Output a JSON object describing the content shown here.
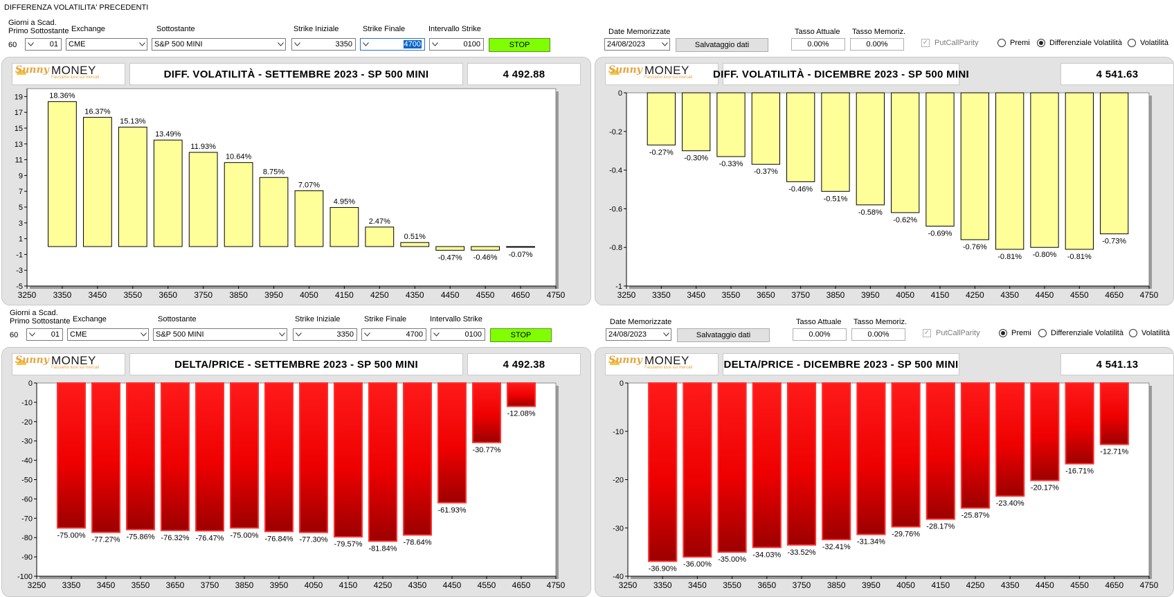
{
  "window_title": "DIFFERENZA VOLATILITA' PRECEDENTI",
  "accent": {
    "stop_button": "#7fff00",
    "vol_bar": "#ffff99",
    "delta_bar_top": "#ff0000",
    "delta_bar_bottom": "#a00000"
  },
  "controls_top": {
    "giorni_label1": "Giorni a Scad.",
    "giorni_label2": "Primo Sottostante",
    "giorni_value": "60",
    "giorni_combo": "01",
    "exchange_label": "Exchange",
    "exchange_value": "CME",
    "sottostante_label": "Sottostante",
    "sottostante_value": "S&P 500 MINI",
    "strike_iniziale_label": "Strike Iniziale",
    "strike_iniziale_value": "3350",
    "strike_finale_label": "Strike Finale",
    "strike_finale_value": "4700",
    "intervallo_label": "Intervallo Strike",
    "intervallo_value": "0100",
    "stop_label": "STOP",
    "date_label": "Date Memorizzate",
    "date_value": "24/08/2023",
    "save_label": "Salvataggio dati",
    "tasso_attuale_label": "Tasso Attuale",
    "tasso_attuale_value": "0.00%",
    "tasso_memoriz_label": "Tasso Memoriz.",
    "tasso_memoriz_value": "0.00%",
    "putcall_label": "PutCallParity",
    "radio_premi": "Premi",
    "radio_diff": "Differenziale Volatilità",
    "radio_vol": "Volatilità",
    "selected": "diff"
  },
  "controls_bottom": {
    "giorni_label1": "Giorni a Scad.",
    "giorni_label2": "Primo Sottostante",
    "giorni_value": "60",
    "giorni_combo": "01",
    "exchange_label": "Exchange",
    "exchange_value": "CME",
    "sottostante_label": "Sottostante",
    "sottostante_value": "S&P 500 MINI",
    "strike_iniziale_label": "Strike Iniziale",
    "strike_iniziale_value": "3350",
    "strike_finale_label": "Strike Finale",
    "strike_finale_value": "4700",
    "intervallo_label": "Intervallo Strike",
    "intervallo_value": "0100",
    "stop_label": "STOP",
    "date_label": "Date Memorizzate",
    "date_value": "24/08/2023",
    "save_label": "Salvataggio dati",
    "tasso_attuale_label": "Tasso Attuale",
    "tasso_attuale_value": "0.00%",
    "tasso_memoriz_label": "Tasso Memoriz.",
    "tasso_memoriz_value": "0.00%",
    "putcall_label": "PutCallParity",
    "radio_premi": "Premi",
    "radio_diff": "Differenziale Volatilità",
    "radio_vol": "Volatilità",
    "selected": "premi"
  },
  "logo": {
    "brand_a": "Sunny",
    "brand_b": "MONEY",
    "tagline": "Facciamo luce sui mercati"
  },
  "panels": [
    {
      "title": "DIFF. VOLATILITÀ - SETTEMBRE 2023 - SP 500 MINI",
      "price": "4 492.88"
    },
    {
      "title": "DIFF. VOLATILITÀ - DICEMBRE 2023 - SP 500 MINI",
      "price": "4 541.63"
    },
    {
      "title": "DELTA/PRICE - SETTEMBRE 2023 - SP 500 MINI",
      "price": "4 492.38"
    },
    {
      "title": "DELTA/PRICE - DICEMBRE 2023 - SP 500 MINI",
      "price": "4 541.13"
    }
  ],
  "chart_data": [
    {
      "type": "bar",
      "x": [
        3350,
        3450,
        3550,
        3650,
        3750,
        3850,
        3950,
        4050,
        4150,
        4250,
        4350,
        4450,
        4550,
        4650
      ],
      "values": [
        18.36,
        16.37,
        15.13,
        13.49,
        11.93,
        10.64,
        8.75,
        7.07,
        4.95,
        2.47,
        0.51,
        -0.47,
        -0.46,
        -0.07
      ],
      "labels": [
        "18.36%",
        "16.37%",
        "15.13%",
        "13.49%",
        "11.93%",
        "10.64%",
        "8.75%",
        "7.07%",
        "4.95%",
        "2.47%",
        "0.51%",
        "-0.47%",
        "-0.46%",
        "-0.07%"
      ],
      "xlim": [
        3250,
        4750
      ],
      "ylim": [
        -5,
        20
      ],
      "yticks": [
        19,
        17,
        15,
        13,
        11,
        9,
        7,
        5,
        3,
        1,
        -1,
        -3,
        -5
      ],
      "xticks": [
        3250,
        3350,
        3450,
        3550,
        3650,
        3750,
        3850,
        3950,
        4050,
        4150,
        4250,
        4350,
        4450,
        4550,
        4650,
        4750
      ],
      "style": "yellow"
    },
    {
      "type": "bar",
      "x": [
        3350,
        3450,
        3550,
        3650,
        3750,
        3850,
        3950,
        4050,
        4150,
        4250,
        4350,
        4450,
        4550,
        4650
      ],
      "values": [
        -0.27,
        -0.3,
        -0.33,
        -0.37,
        -0.46,
        -0.51,
        -0.58,
        -0.62,
        -0.69,
        -0.76,
        -0.81,
        -0.8,
        -0.81,
        -0.73
      ],
      "labels": [
        "-0.27%",
        "-0.30%",
        "-0.33%",
        "-0.37%",
        "-0.46%",
        "-0.51%",
        "-0.58%",
        "-0.62%",
        "-0.69%",
        "-0.76%",
        "-0.81%",
        "-0.80%",
        "-0.81%",
        "-0.73%"
      ],
      "xlim": [
        3250,
        4750
      ],
      "ylim": [
        -1,
        0
      ],
      "yticks": [
        0,
        -0.2,
        -0.4,
        -0.6,
        -0.8,
        -1
      ],
      "ytick_labels": [
        "0",
        "-0.2",
        "-0.4",
        "-0.6",
        "-0.8",
        "-1"
      ],
      "xticks": [
        3250,
        3350,
        3450,
        3550,
        3650,
        3750,
        3850,
        3950,
        4050,
        4150,
        4250,
        4350,
        4450,
        4550,
        4650,
        4750
      ],
      "style": "yellow"
    },
    {
      "type": "bar",
      "x": [
        3350,
        3450,
        3550,
        3650,
        3750,
        3850,
        3950,
        4050,
        4150,
        4250,
        4350,
        4450,
        4550,
        4650
      ],
      "values": [
        -75.0,
        -77.27,
        -75.86,
        -76.32,
        -76.47,
        -75.0,
        -76.84,
        -77.3,
        -79.57,
        -81.84,
        -78.64,
        -61.93,
        -30.77,
        -12.08
      ],
      "labels": [
        "-75.00%",
        "-77.27%",
        "-75.86%",
        "-76.32%",
        "-76.47%",
        "-75.00%",
        "-76.84%",
        "-77.30%",
        "-79.57%",
        "-81.84%",
        "-78.64%",
        "-61.93%",
        "-30.77%",
        "-12.08%"
      ],
      "xlim": [
        3250,
        4750
      ],
      "ylim": [
        -100,
        0
      ],
      "yticks": [
        0,
        -10,
        -20,
        -30,
        -40,
        -50,
        -60,
        -70,
        -80,
        -90,
        -100
      ],
      "xticks": [
        3250,
        3350,
        3450,
        3550,
        3650,
        3750,
        3850,
        3950,
        4050,
        4150,
        4250,
        4350,
        4450,
        4550,
        4650,
        4750
      ],
      "style": "red"
    },
    {
      "type": "bar",
      "x": [
        3350,
        3450,
        3550,
        3650,
        3750,
        3850,
        3950,
        4050,
        4150,
        4250,
        4350,
        4450,
        4550,
        4650
      ],
      "values": [
        -36.9,
        -36.0,
        -35.0,
        -34.03,
        -33.52,
        -32.41,
        -31.34,
        -29.76,
        -28.17,
        -25.87,
        -23.4,
        -20.17,
        -16.71,
        -12.71
      ],
      "labels": [
        "-36.90%",
        "-36.00%",
        "-35.00%",
        "-34.03%",
        "-33.52%",
        "-32.41%",
        "-31.34%",
        "-29.76%",
        "-28.17%",
        "-25.87%",
        "-23.40%",
        "-20.17%",
        "-16.71%",
        "-12.71%"
      ],
      "xlim": [
        3250,
        4750
      ],
      "ylim": [
        -40,
        0
      ],
      "yticks": [
        0,
        -10,
        -20,
        -30,
        -40
      ],
      "xticks": [
        3250,
        3350,
        3450,
        3550,
        3650,
        3750,
        3850,
        3950,
        4050,
        4150,
        4250,
        4350,
        4450,
        4550,
        4650,
        4750
      ],
      "style": "red"
    }
  ]
}
